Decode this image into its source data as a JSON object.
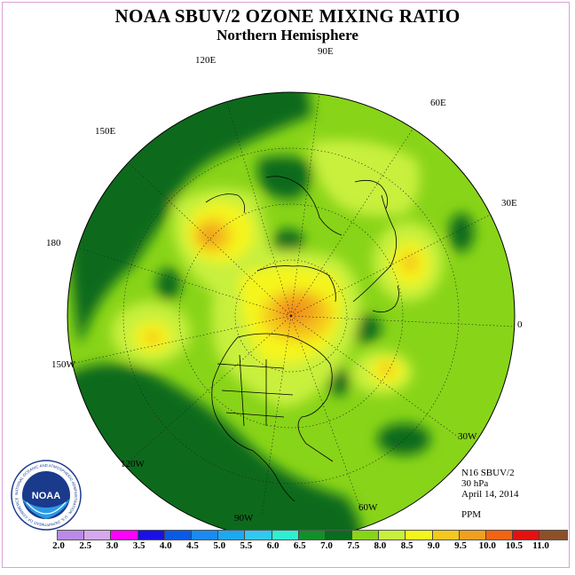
{
  "title": "NOAA SBUV/2 OZONE MIXING RATIO",
  "subtitle": "Northern Hemisphere",
  "longitude_labels": [
    "90E",
    "60E",
    "30E",
    "0",
    "30W",
    "60W",
    "90W",
    "120W",
    "150W",
    "180",
    "150E",
    "120E"
  ],
  "info": {
    "instrument": "N16 SBUV/2",
    "level": "30 hPa",
    "date": "April 14, 2014",
    "units": "PPM"
  },
  "colorbar": {
    "ticks": [
      "2.0",
      "2.5",
      "3.0",
      "3.5",
      "4.0",
      "4.5",
      "5.0",
      "5.5",
      "6.0",
      "6.5",
      "7.0",
      "7.5",
      "8.0",
      "8.5",
      "9.0",
      "9.5",
      "10.0",
      "10.5",
      "11.0"
    ],
    "colors": [
      "#b98ae6",
      "#d6a8ee",
      "#ff00ff",
      "#1a10e6",
      "#0a5ae6",
      "#1a8af0",
      "#1ea8f0",
      "#32c8f0",
      "#2ef0d0",
      "#119028",
      "#0b6b1e",
      "#88d418",
      "#c8f03c",
      "#f5f51e",
      "#f5c81e",
      "#f0a01e",
      "#f56414",
      "#e61010",
      "#8c5028"
    ]
  },
  "logo": {
    "text": "NOAA",
    "ring_text": "NATIONAL OCEANIC AND ATMOSPHERIC ADMINISTRATION · U.S. DEPARTMENT OF COMMERCE"
  }
}
